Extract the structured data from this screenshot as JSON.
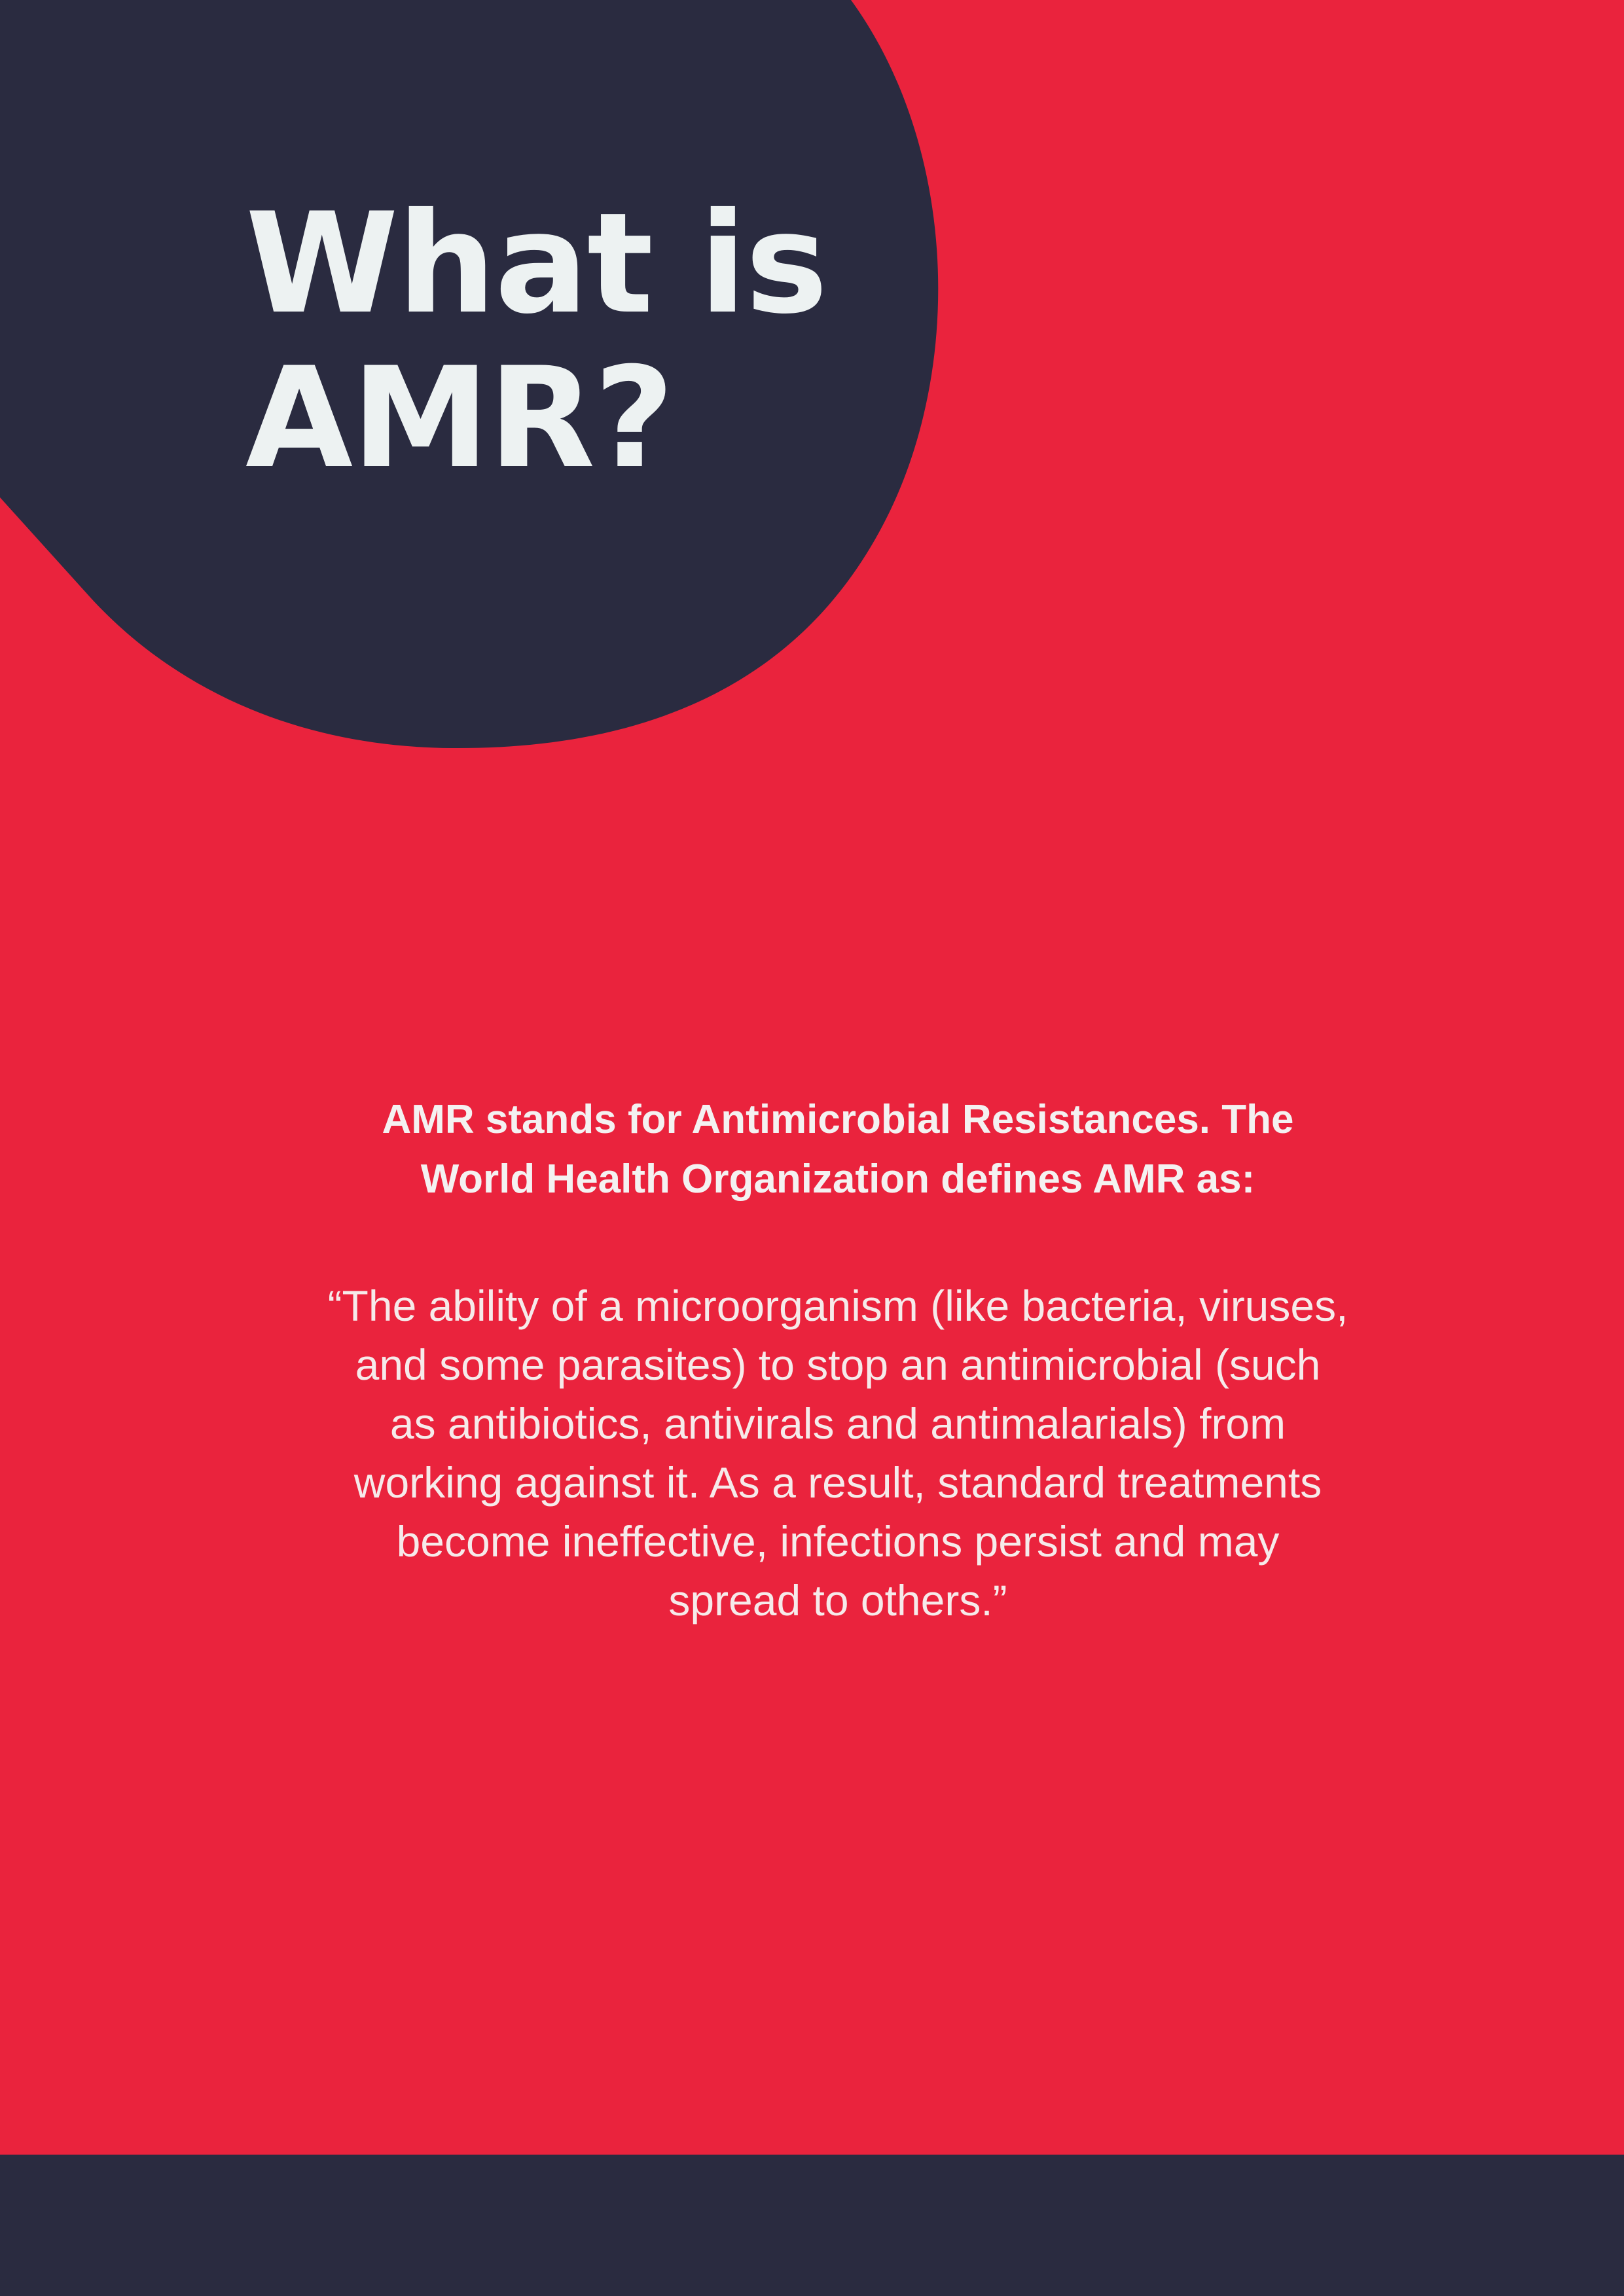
{
  "title": {
    "lines": [
      "What is",
      "AMR?"
    ]
  },
  "intro": {
    "lines": [
      "AMR stands for Antimicrobial Resistances. The",
      "World Health Organization defines AMR as:"
    ]
  },
  "quote": {
    "lines": [
      "“The ability of a microorganism (like bacteria, viruses,",
      "and some parasites) to stop an antimicrobial (such",
      "as antibiotics, antivirals and antimalarials) from",
      "working against it. As a result, standard treatments",
      "become ineffective, infections persist and may",
      "spread to others.”"
    ]
  },
  "colors": {
    "background": "#ea233d",
    "navy": "#2a2b40",
    "text": "#edf2f2"
  }
}
